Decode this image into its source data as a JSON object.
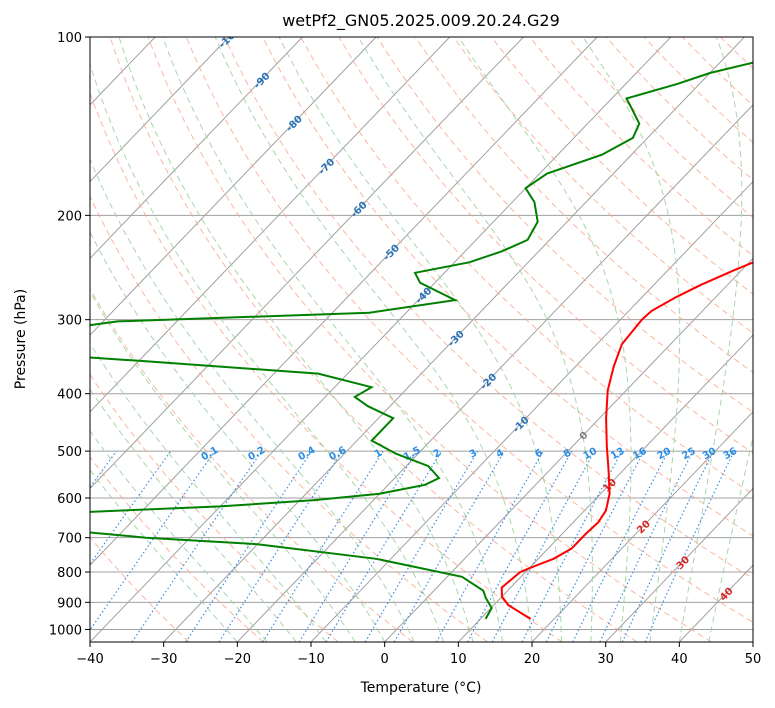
{
  "chart_data": {
    "type": "skew-t",
    "title": "wetPf2_GN05.2025.009.20.24.G29",
    "xlabel": "Temperature (°C)",
    "ylabel": "Pressure (hPa)",
    "xlim": [
      -40,
      50
    ],
    "ylim": [
      1050,
      100
    ],
    "y_scale": "log",
    "grid": true,
    "x_ticks": [
      -40,
      -30,
      -20,
      -10,
      0,
      10,
      20,
      30,
      40,
      50
    ],
    "x_tick_labels": [
      "−40",
      "−30",
      "−20",
      "−10",
      "0",
      "10",
      "20",
      "30",
      "40",
      "50"
    ],
    "y_ticks": [
      1000,
      900,
      800,
      700,
      600,
      500,
      400,
      300,
      200,
      100
    ],
    "y_tick_labels": [
      "1000",
      "900",
      "800",
      "700",
      "600",
      "500",
      "400",
      "300",
      "200",
      "100"
    ],
    "series": [
      {
        "color": "#ff0000",
        "points": [
          [
            16.8,
            960
          ],
          [
            12.0,
            910
          ],
          [
            10.0,
            880
          ],
          [
            8.8,
            850
          ],
          [
            9.3,
            800
          ],
          [
            10.6,
            780
          ],
          [
            12.1,
            760
          ],
          [
            13.2,
            730
          ],
          [
            13.2,
            690
          ],
          [
            13.4,
            660
          ],
          [
            12.9,
            630
          ],
          [
            11.2,
            590
          ],
          [
            8.1,
            540
          ],
          [
            4.6,
            490
          ],
          [
            0.9,
            440
          ],
          [
            -2.5,
            395
          ],
          [
            -4.8,
            360
          ],
          [
            -6.6,
            330
          ],
          [
            -7.1,
            300
          ],
          [
            -6.9,
            290
          ],
          [
            -5.4,
            275
          ],
          [
            -3.6,
            262
          ],
          [
            -1.1,
            248
          ],
          [
            2.1,
            233
          ],
          [
            5.0,
            220
          ],
          [
            7.8,
            207
          ],
          [
            11.0,
            193
          ],
          [
            14.0,
            178
          ],
          [
            17.2,
            163
          ],
          [
            19.4,
            150
          ],
          [
            21.4,
            139
          ],
          [
            22.8,
            130
          ],
          [
            24.3,
            122
          ],
          [
            26.3,
            115
          ],
          [
            28.0,
            109
          ],
          [
            29.5,
            104
          ],
          [
            30.4,
            100
          ]
        ]
      },
      {
        "color": "#008000",
        "points": [
          [
            10.7,
            960
          ],
          [
            10.1,
            920
          ],
          [
            8.0,
            885
          ],
          [
            6.7,
            860
          ],
          [
            2.0,
            815
          ],
          [
            -12.0,
            760
          ],
          [
            -30.0,
            718
          ],
          [
            -46.0,
            700
          ],
          [
            -70.0,
            660
          ],
          [
            -78.0,
            650
          ],
          [
            -40.0,
            620
          ],
          [
            -28.0,
            605
          ],
          [
            -20.0,
            590
          ],
          [
            -15.0,
            570
          ],
          [
            -14.0,
            555
          ],
          [
            -17.0,
            530
          ],
          [
            -23.0,
            505
          ],
          [
            -28.0,
            480
          ],
          [
            -28.0,
            460
          ],
          [
            -28.0,
            440
          ],
          [
            -33.0,
            420
          ],
          [
            -36.0,
            405
          ],
          [
            -35.0,
            390
          ],
          [
            -44.0,
            370
          ],
          [
            -70.0,
            352
          ],
          [
            -86.0,
            342
          ],
          [
            -88.0,
            330
          ],
          [
            -84.0,
            310
          ],
          [
            -78.0,
            302
          ],
          [
            -45.0,
            292
          ],
          [
            -35.0,
            278
          ],
          [
            -42.0,
            260
          ],
          [
            -44.0,
            250
          ],
          [
            -38.0,
            240
          ],
          [
            -35.0,
            230
          ],
          [
            -33.0,
            220
          ],
          [
            -34.0,
            205
          ],
          [
            -37.0,
            190
          ],
          [
            -40.0,
            180
          ],
          [
            -39.0,
            170
          ],
          [
            -34.0,
            158
          ],
          [
            -32.0,
            148
          ],
          [
            -33.0,
            140
          ],
          [
            -36.0,
            132
          ],
          [
            -38.0,
            127
          ],
          [
            -33.0,
            120
          ],
          [
            -30.0,
            115
          ],
          [
            -25.0,
            110
          ],
          [
            -22.5,
            105
          ],
          [
            -22.0,
            100
          ]
        ]
      }
    ],
    "isobar_labels": [
      "0.1",
      "0.2",
      "0.4",
      "0.6",
      "1",
      "1.5",
      "2",
      "3",
      "4",
      "6",
      "8",
      "10",
      "13",
      "16",
      "20",
      "25",
      "30",
      "36"
    ],
    "dry_adiabat_labels": [
      "-100",
      "-90",
      "-80",
      "-70",
      "-60",
      "-50",
      "-40",
      "-30",
      "-20",
      "-10",
      "0",
      "10",
      "20",
      "30",
      "40"
    ],
    "colors": {
      "temperature": "#ff0000",
      "dewpoint": "#008000",
      "isotherm": "#a0a0a0",
      "dry_adiabat": "#f7a58a",
      "moist_adiabat": "#9fd39f",
      "mixing_ratio": "#3a8ee6",
      "cold_label": "#2a72b8",
      "warm_label": "#d62728",
      "zero_label": "#7f7f7f",
      "mr_label": "#2b8de6"
    }
  }
}
